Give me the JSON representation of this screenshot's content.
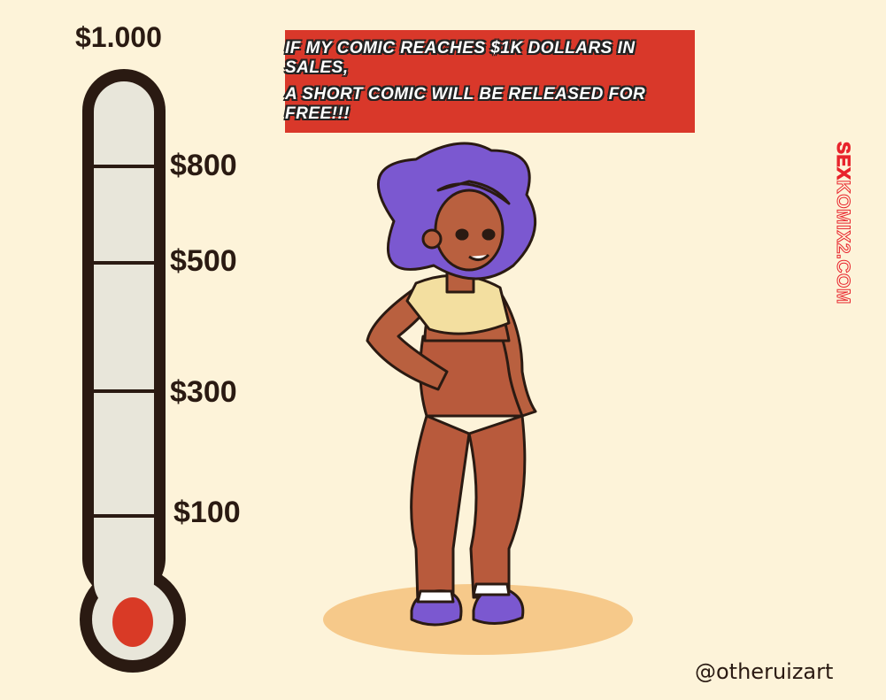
{
  "thermometer": {
    "goal_label": "$1.000",
    "ticks": [
      {
        "label": "$800"
      },
      {
        "label": "$500"
      },
      {
        "label": "$300"
      },
      {
        "label": "$100"
      }
    ],
    "fill_amount": 0,
    "fill_color": "#d93a26"
  },
  "banner": {
    "line1": "If my comic Reaches $1k dollars in sales,",
    "line2": "a short comic will be released for free!!!",
    "color": "#d9382a"
  },
  "watermark": {
    "prefix": "SEX",
    "rest": "KOMIX2.COM"
  },
  "credit": "@otheruizart",
  "colors": {
    "background": "#fdf3d9",
    "hair": "#7b58d0",
    "skin": "#b9603f",
    "pants": "#b85a3c",
    "top": "#f3dfa0"
  }
}
